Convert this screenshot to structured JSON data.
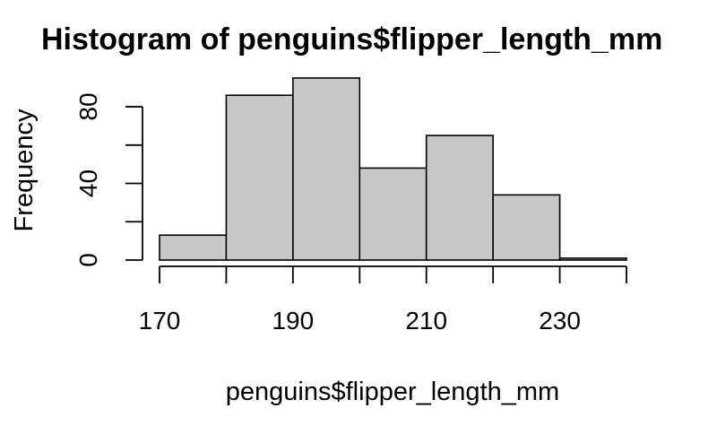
{
  "chart_data": {
    "type": "bar",
    "title": "Histogram of penguins$flipper_length_mm",
    "xlabel": "penguins$flipper_length_mm",
    "ylabel": "Frequency",
    "bins": [
      {
        "start": 170,
        "end": 180,
        "count": 13
      },
      {
        "start": 180,
        "end": 190,
        "count": 86
      },
      {
        "start": 190,
        "end": 200,
        "count": 95
      },
      {
        "start": 200,
        "end": 210,
        "count": 48
      },
      {
        "start": 210,
        "end": 220,
        "count": 65
      },
      {
        "start": 220,
        "end": 230,
        "count": 34
      },
      {
        "start": 230,
        "end": 240,
        "count": 1
      }
    ],
    "xlim": [
      170,
      240
    ],
    "ylim": [
      0,
      95
    ],
    "x_ticks": [
      170,
      180,
      190,
      200,
      210,
      220,
      230,
      240
    ],
    "x_tick_labels": [
      "170",
      "190",
      "210",
      "230"
    ],
    "y_ticks": [
      0,
      20,
      40,
      60,
      80
    ],
    "y_tick_labels": [
      "0",
      "40",
      "80"
    ],
    "grid": false,
    "bar_fill": "#c8c8c8",
    "bar_stroke": "#000000"
  }
}
